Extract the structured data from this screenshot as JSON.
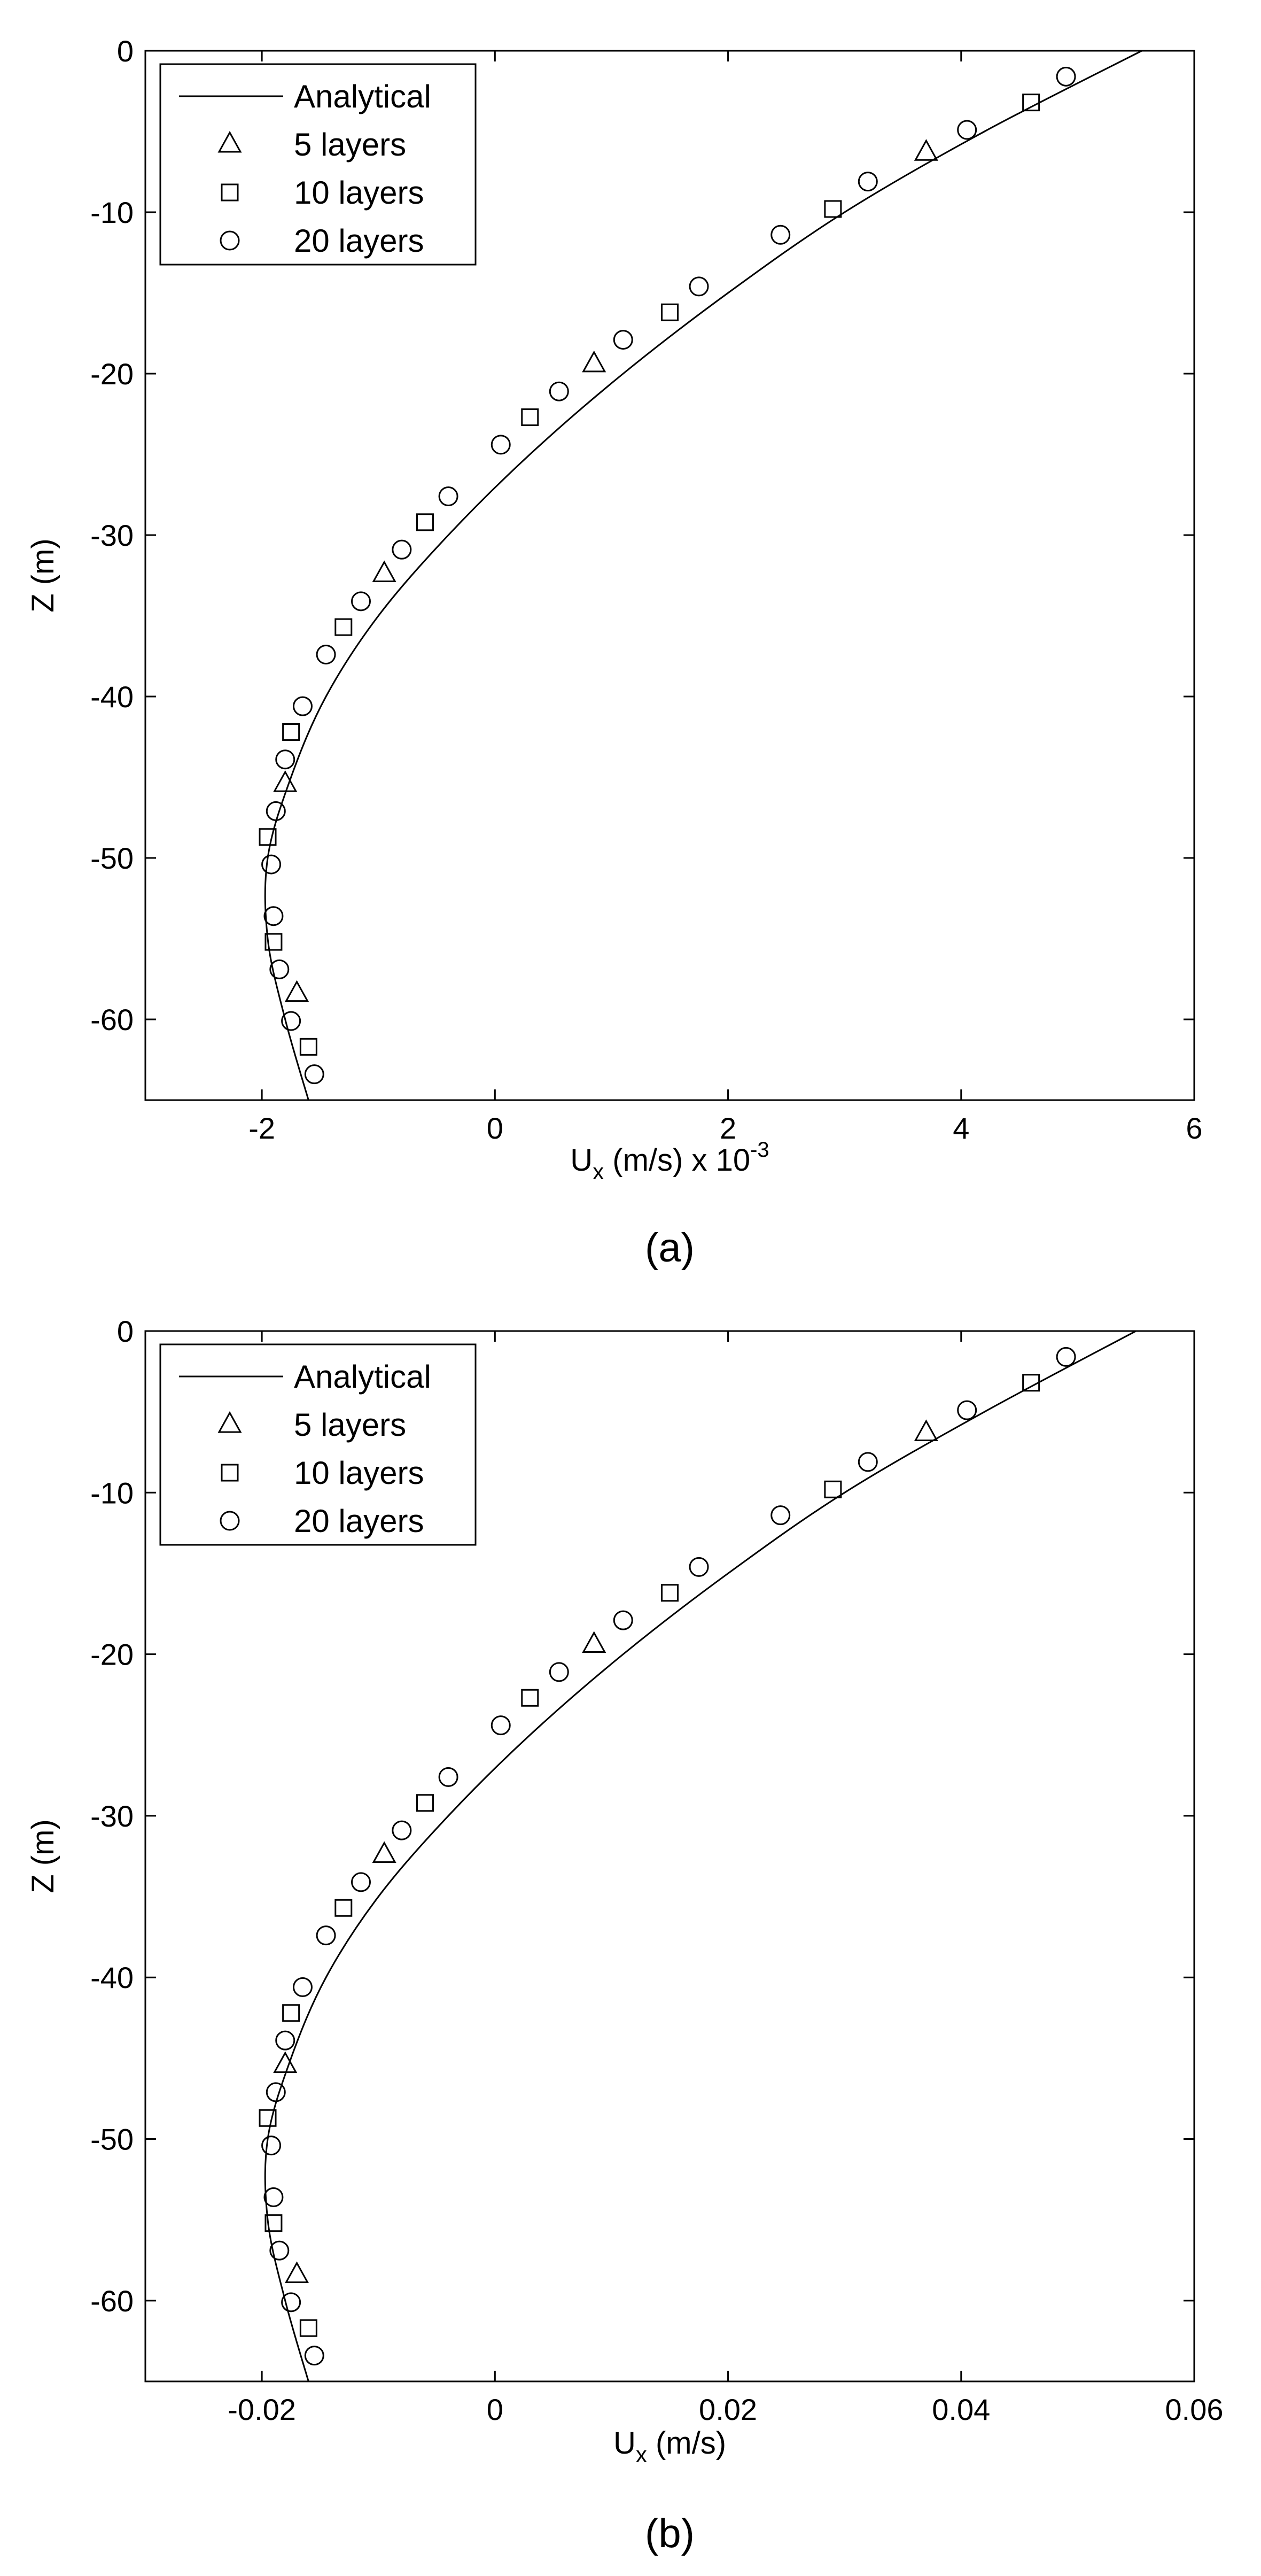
{
  "chart_data": [
    {
      "type": "line",
      "panel_label": "(a)",
      "xlabel": {
        "base": "U",
        "sub": "x",
        "rest": " (m/s) x 10",
        "sup": "-3"
      },
      "ylabel": "Z (m)",
      "xlim": [
        -3,
        6
      ],
      "ylim": [
        -65,
        0
      ],
      "xticks": [
        -2,
        0,
        2,
        4,
        6
      ],
      "xtick_labels": [
        "-2",
        "0",
        "2",
        "4",
        "6"
      ],
      "yticks": [
        0,
        -10,
        -20,
        -30,
        -40,
        -50,
        -60
      ],
      "ytick_labels": [
        "0",
        "-10",
        "-20",
        "-30",
        "-40",
        "-50",
        "-60"
      ],
      "grid": false,
      "legend_position": "top-left",
      "series": [
        {
          "name": "Analytical",
          "marker": "line",
          "points": [
            [
              5.55,
              0
            ],
            [
              4.2,
              -5
            ],
            [
              3.0,
              -10
            ],
            [
              2.0,
              -15
            ],
            [
              1.1,
              -20
            ],
            [
              0.3,
              -25
            ],
            [
              -0.4,
              -30
            ],
            [
              -1.0,
              -35
            ],
            [
              -1.45,
              -40
            ],
            [
              -1.75,
              -45
            ],
            [
              -1.95,
              -50
            ],
            [
              -1.95,
              -55
            ],
            [
              -1.8,
              -60
            ],
            [
              -1.6,
              -65
            ]
          ]
        },
        {
          "name": "5 layers",
          "marker": "triangle",
          "points": [
            [
              3.7,
              -6.3
            ],
            [
              0.85,
              -19.4
            ],
            [
              -0.95,
              -32.4
            ],
            [
              -1.8,
              -45.4
            ],
            [
              -1.7,
              -58.4
            ]
          ]
        },
        {
          "name": "10 layers",
          "marker": "square",
          "points": [
            [
              4.6,
              -3.2
            ],
            [
              2.9,
              -9.8
            ],
            [
              1.5,
              -16.2
            ],
            [
              0.3,
              -22.7
            ],
            [
              -0.6,
              -29.2
            ],
            [
              -1.3,
              -35.7
            ],
            [
              -1.75,
              -42.2
            ],
            [
              -1.95,
              -48.7
            ],
            [
              -1.9,
              -55.2
            ],
            [
              -1.6,
              -61.7
            ]
          ]
        },
        {
          "name": "20 layers",
          "marker": "circle",
          "points": [
            [
              4.9,
              -1.6
            ],
            [
              4.05,
              -4.9
            ],
            [
              3.2,
              -8.1
            ],
            [
              2.45,
              -11.4
            ],
            [
              1.75,
              -14.6
            ],
            [
              1.1,
              -17.9
            ],
            [
              0.55,
              -21.1
            ],
            [
              0.05,
              -24.4
            ],
            [
              -0.4,
              -27.6
            ],
            [
              -0.8,
              -30.9
            ],
            [
              -1.15,
              -34.1
            ],
            [
              -1.45,
              -37.4
            ],
            [
              -1.65,
              -40.6
            ],
            [
              -1.8,
              -43.9
            ],
            [
              -1.88,
              -47.1
            ],
            [
              -1.92,
              -50.4
            ],
            [
              -1.9,
              -53.6
            ],
            [
              -1.85,
              -56.9
            ],
            [
              -1.75,
              -60.1
            ],
            [
              -1.55,
              -63.4
            ]
          ]
        }
      ]
    },
    {
      "type": "line",
      "panel_label": "(b)",
      "xlabel": {
        "base": "U",
        "sub": "x",
        "rest": " (m/s)",
        "sup": ""
      },
      "ylabel": "Z (m)",
      "xlim": [
        -0.03,
        0.06
      ],
      "ylim": [
        -65,
        0
      ],
      "xticks": [
        -0.02,
        0,
        0.02,
        0.04,
        0.06
      ],
      "xtick_labels": [
        "-0.02",
        "0",
        "0.02",
        "0.04",
        "0.06"
      ],
      "yticks": [
        0,
        -10,
        -20,
        -30,
        -40,
        -50,
        -60
      ],
      "ytick_labels": [
        "0",
        "-10",
        "-20",
        "-30",
        "-40",
        "-50",
        "-60"
      ],
      "grid": false,
      "legend_position": "top-left",
      "series": [
        {
          "name": "Analytical",
          "marker": "line",
          "points": [
            [
              0.055,
              0
            ],
            [
              0.042,
              -5
            ],
            [
              0.03,
              -10
            ],
            [
              0.02,
              -15
            ],
            [
              0.011,
              -20
            ],
            [
              0.003,
              -25
            ],
            [
              -0.004,
              -30
            ],
            [
              -0.01,
              -35
            ],
            [
              -0.0145,
              -40
            ],
            [
              -0.0175,
              -45
            ],
            [
              -0.0195,
              -50
            ],
            [
              -0.0195,
              -55
            ],
            [
              -0.018,
              -60
            ],
            [
              -0.016,
              -65
            ]
          ]
        },
        {
          "name": "5 layers",
          "marker": "triangle",
          "points": [
            [
              0.037,
              -6.3
            ],
            [
              0.0085,
              -19.4
            ],
            [
              -0.0095,
              -32.4
            ],
            [
              -0.018,
              -45.4
            ],
            [
              -0.017,
              -58.4
            ]
          ]
        },
        {
          "name": "10 layers",
          "marker": "square",
          "points": [
            [
              0.046,
              -3.2
            ],
            [
              0.029,
              -9.8
            ],
            [
              0.015,
              -16.2
            ],
            [
              0.003,
              -22.7
            ],
            [
              -0.006,
              -29.2
            ],
            [
              -0.013,
              -35.7
            ],
            [
              -0.0175,
              -42.2
            ],
            [
              -0.0195,
              -48.7
            ],
            [
              -0.019,
              -55.2
            ],
            [
              -0.016,
              -61.7
            ]
          ]
        },
        {
          "name": "20 layers",
          "marker": "circle",
          "points": [
            [
              0.049,
              -1.6
            ],
            [
              0.0405,
              -4.9
            ],
            [
              0.032,
              -8.1
            ],
            [
              0.0245,
              -11.4
            ],
            [
              0.0175,
              -14.6
            ],
            [
              0.011,
              -17.9
            ],
            [
              0.0055,
              -21.1
            ],
            [
              0.0005,
              -24.4
            ],
            [
              -0.004,
              -27.6
            ],
            [
              -0.008,
              -30.9
            ],
            [
              -0.0115,
              -34.1
            ],
            [
              -0.0145,
              -37.4
            ],
            [
              -0.0165,
              -40.6
            ],
            [
              -0.018,
              -43.9
            ],
            [
              -0.0188,
              -47.1
            ],
            [
              -0.0192,
              -50.4
            ],
            [
              -0.019,
              -53.6
            ],
            [
              -0.0185,
              -56.9
            ],
            [
              -0.0175,
              -60.1
            ],
            [
              -0.0155,
              -63.4
            ]
          ]
        }
      ]
    }
  ]
}
